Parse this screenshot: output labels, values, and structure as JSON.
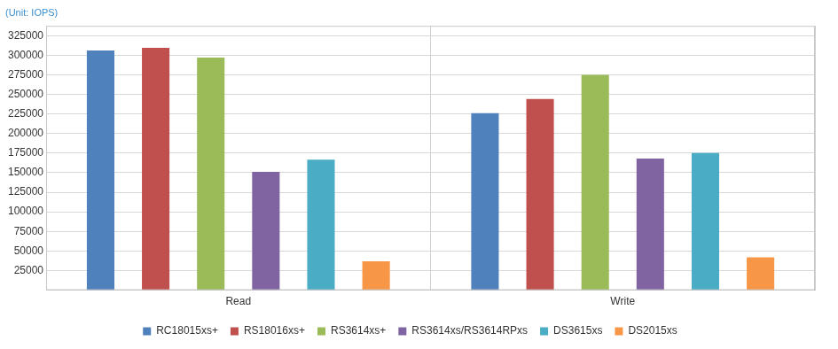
{
  "chart_data": {
    "type": "bar",
    "title": "(Unit: IOPS)",
    "categories": [
      "Read",
      "Write"
    ],
    "series": [
      {
        "name": "RC18015xs+",
        "color": "#4f81bd",
        "values": [
          306000,
          226000
        ]
      },
      {
        "name": "RS18016xs+",
        "color": "#c0504d",
        "values": [
          309500,
          244000
        ]
      },
      {
        "name": "RS3614xs+",
        "color": "#9bbb59",
        "values": [
          297000,
          275000
        ]
      },
      {
        "name": "RS3614xs/RS3614RPxs",
        "color": "#8064a2",
        "values": [
          151000,
          168000
        ]
      },
      {
        "name": "DS3615xs",
        "color": "#4bacc6",
        "values": [
          166700,
          175000
        ]
      },
      {
        "name": "DS2015xs",
        "color": "#f79646",
        "values": [
          37000,
          42000
        ]
      }
    ],
    "ylim": [
      0,
      337500
    ],
    "yticks": [
      25000,
      50000,
      75000,
      100000,
      125000,
      150000,
      175000,
      200000,
      225000,
      250000,
      275000,
      300000,
      325000
    ],
    "grid": true,
    "legend": "bottom"
  }
}
